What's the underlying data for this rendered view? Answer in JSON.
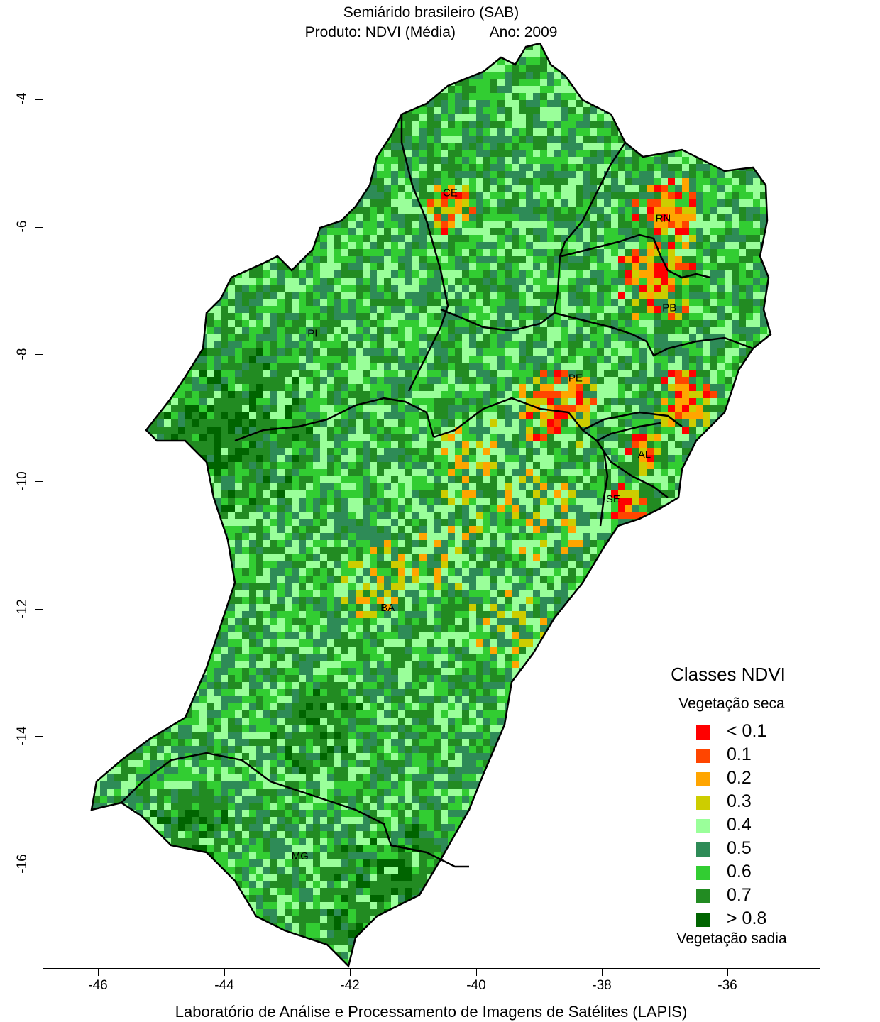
{
  "title": {
    "line1": "Semiárido brasileiro (SAB)",
    "product": "Produto: NDVI (Média)",
    "year": "Ano:  2009"
  },
  "footer": "Laboratório de Análise e Processamento de Imagens de Satélites (LAPIS)",
  "axes": {
    "x_ticks": [
      "-46",
      "-44",
      "-42",
      "-40",
      "-38",
      "-36"
    ],
    "y_ticks": [
      "-4",
      "-6",
      "-8",
      "-10",
      "-12",
      "-14",
      "-16"
    ],
    "x_range": [
      -46.9,
      -34.5
    ],
    "y_range": [
      -17.6,
      -3.1
    ]
  },
  "states": [
    {
      "label": "CE",
      "lon": -40.4,
      "lat": -5.5
    },
    {
      "label": "RN",
      "lon": -37.0,
      "lat": -5.9
    },
    {
      "label": "PB",
      "lon": -36.9,
      "lat": -7.3
    },
    {
      "label": "PI",
      "lon": -42.6,
      "lat": -7.7
    },
    {
      "label": "PE",
      "lon": -38.4,
      "lat": -8.4
    },
    {
      "label": "AL",
      "lon": -37.3,
      "lat": -9.6
    },
    {
      "label": "SE",
      "lon": -37.8,
      "lat": -10.3
    },
    {
      "label": "BA",
      "lon": -41.4,
      "lat": -12.0
    },
    {
      "label": "MG",
      "lon": -42.8,
      "lat": -15.9
    }
  ],
  "legend": {
    "title": "Classes NDVI",
    "top_label": "Vegetação seca",
    "bottom_label": "Vegetação sadia",
    "classes": [
      {
        "label": "< 0.1",
        "color": "#ff0000"
      },
      {
        "label": "0.1",
        "color": "#ff4500"
      },
      {
        "label": "0.2",
        "color": "#ffa500"
      },
      {
        "label": "0.3",
        "color": "#cdcd00"
      },
      {
        "label": "0.4",
        "color": "#9aff9a"
      },
      {
        "label": "0.5",
        "color": "#2e8b57"
      },
      {
        "label": "0.6",
        "color": "#32cd32"
      },
      {
        "label": "0.7",
        "color": "#228b22"
      },
      {
        "label": "> 0.8",
        "color": "#006400"
      }
    ]
  }
}
